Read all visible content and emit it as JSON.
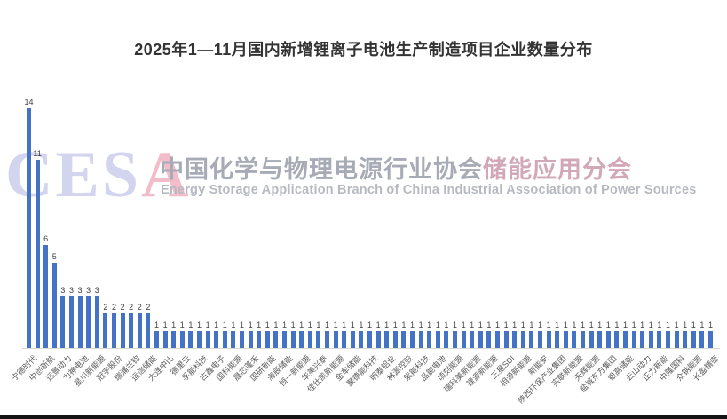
{
  "title": "2025年1—11月国内新增锂离子电池生产制造项目企业数量分布",
  "watermark": {
    "letters": [
      {
        "char": "C",
        "color": "#d3d4ee"
      },
      {
        "char": "E",
        "color": "#d3d4ee"
      },
      {
        "char": "S",
        "color": "#d3d4ee"
      },
      {
        "char": "A",
        "color": "#f2bccb"
      }
    ],
    "cn_main": "中国化学与物理电源行业协会",
    "cn_accent": "储能应用分会",
    "cn_main_color": "#a6abb5",
    "cn_accent_color": "#d2a7b7",
    "en": "Energy Storage Application Branch of China Industrial Association of Power Sources"
  },
  "chart_data": {
    "type": "bar",
    "title": "2025年1—11月国内新增锂离子电池生产制造项目企业数量分布",
    "bar_color": "#4472C4",
    "grid": false,
    "ylim": [
      0,
      14
    ],
    "value_labels_shown": true,
    "label_interval": 2,
    "values": [
      14,
      11,
      6,
      5,
      3,
      3,
      3,
      3,
      3,
      2,
      2,
      2,
      2,
      2,
      2,
      1,
      1,
      1,
      1,
      1,
      1,
      1,
      1,
      1,
      1,
      1,
      1,
      1,
      1,
      1,
      1,
      1,
      1,
      1,
      1,
      1,
      1,
      1,
      1,
      1,
      1,
      1,
      1,
      1,
      1,
      1,
      1,
      1,
      1,
      1,
      1,
      1,
      1,
      1,
      1,
      1,
      1,
      1,
      1,
      1,
      1,
      1,
      1,
      1,
      1,
      1,
      1,
      1,
      1,
      1,
      1,
      1,
      1,
      1,
      1,
      1,
      1,
      1,
      1,
      1,
      1
    ],
    "x_tick_labels": [
      "宁德时代",
      "中创新航",
      "远景动力",
      "力神电池",
      "星川新能源",
      "冠宇股份",
      "瑞浦兰钧",
      "运信储能",
      "大连中比",
      "德里云",
      "孚能科技",
      "古鑫电子",
      "国科能源",
      "晟芯蓬禾",
      "国研新能",
      "海辰储能",
      "恒一新能源",
      "华美兴泰",
      "佳仕凯新能源",
      "金车储能",
      "聚德能科技",
      "明泰铝业",
      "林源控股",
      "紫能科技",
      "品能电池",
      "顷刻能源",
      "瑞科美新能源",
      "锂源新能源",
      "三星SDI",
      "相源新能源",
      "新能安",
      "陕西环保产业集团",
      "实联新能源",
      "天辉能源",
      "盐城东方集团",
      "银高储能",
      "云山动力",
      "正力新能",
      "中隆国科",
      "众钠能源",
      "长盈精密"
    ]
  }
}
